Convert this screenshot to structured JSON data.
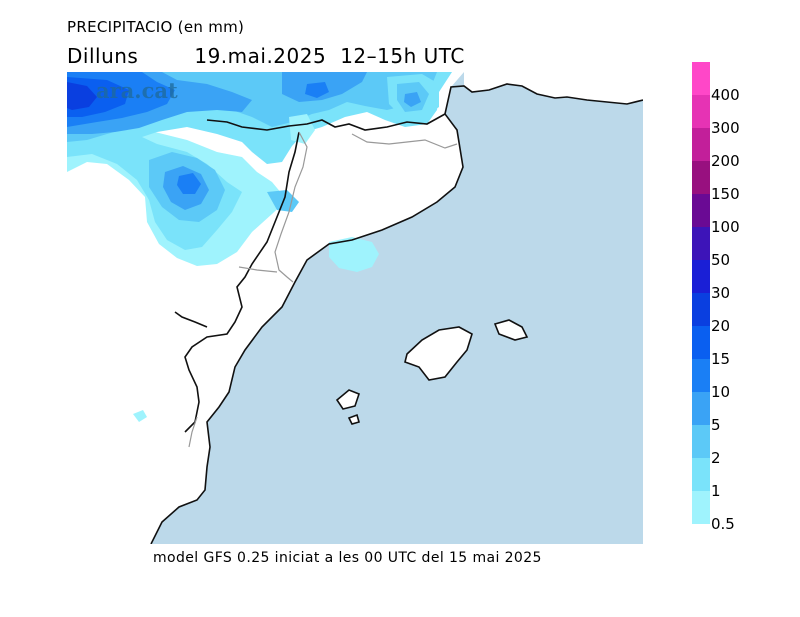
{
  "header": {
    "title": "PRECIPITACIO (en mm)",
    "day": "Dilluns",
    "date": "19.mai.2025",
    "time": "12–15h UTC"
  },
  "footer": {
    "model_run": "model GFS 0.25 iniciat a les 00 UTC del 15 mai 2025"
  },
  "watermark": {
    "text": "ara.cat"
  },
  "legend": {
    "items": [
      {
        "label": "400",
        "color": "#ff47c8"
      },
      {
        "label": "300",
        "color": "#e633b4"
      },
      {
        "label": "200",
        "color": "#c21f9a"
      },
      {
        "label": "150",
        "color": "#98107f"
      },
      {
        "label": "100",
        "color": "#6a0a94"
      },
      {
        "label": "50",
        "color": "#3d14b8"
      },
      {
        "label": "30",
        "color": "#1a1fd6"
      },
      {
        "label": "20",
        "color": "#0a3fe0"
      },
      {
        "label": "15",
        "color": "#0a5ff0"
      },
      {
        "label": "10",
        "color": "#1a7ff5"
      },
      {
        "label": "5",
        "color": "#3aa3f5"
      },
      {
        "label": "2",
        "color": "#5cc9f7"
      },
      {
        "label": "1",
        "color": "#7ae3fa"
      },
      {
        "label": "0.5",
        "color": "#9ff3fd"
      }
    ]
  },
  "map": {
    "colors": {
      "sea": "#bcd9ea",
      "land": "#ffffff",
      "coast": "#111111",
      "border": "#999999"
    }
  }
}
